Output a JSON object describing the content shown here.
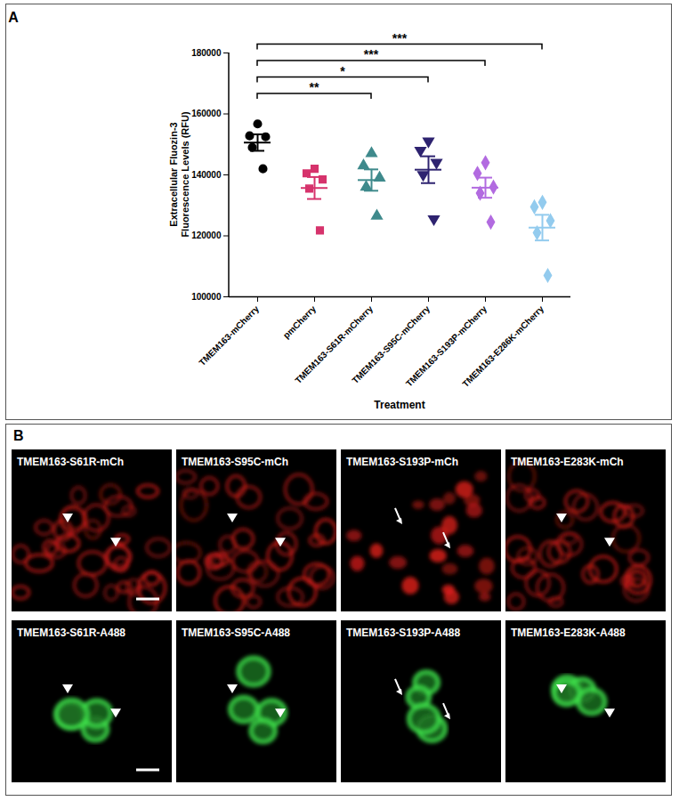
{
  "chart_data": {
    "type": "scatter",
    "panel_label": "A",
    "xlabel": "Treatment",
    "ylabel": "Extracellular Fluozin-3\nFluorescence Levels (RFU)",
    "categories": [
      "TMEM163-mCherry",
      "pmCherry",
      "TMEM163-S61R-mCherry",
      "TMEM163-S95C-mCherry",
      "TMEM163-S193P-mCherry",
      "TMEM163-E286K-mCherry"
    ],
    "points": [
      [
        156700,
        152800,
        152500,
        149000,
        142000
      ],
      [
        142000,
        140500,
        138500,
        135500,
        121800
      ],
      [
        147000,
        143000,
        139000,
        136000,
        126500
      ],
      [
        151000,
        148000,
        144000,
        140000,
        125500
      ],
      [
        144000,
        140500,
        136000,
        134000,
        124500
      ],
      [
        131000,
        129500,
        125000,
        121000,
        107000
      ]
    ],
    "mean": [
      150600,
      135700,
      138300,
      141700,
      135800,
      122700
    ],
    "sem": [
      2700,
      3600,
      3500,
      4400,
      3300,
      4200
    ],
    "colors": [
      "#000000",
      "#d6336c",
      "#3f8a8c",
      "#2e2370",
      "#b26be0",
      "#93cbee"
    ],
    "markers": [
      "circle",
      "square",
      "triangle",
      "triangle-down",
      "diamond",
      "diamond"
    ],
    "ylim": [
      100000,
      180000
    ],
    "yticks": [
      100000,
      120000,
      140000,
      160000,
      180000
    ],
    "grid": false,
    "significance": [
      {
        "from": "TMEM163-mCherry",
        "to": "TMEM163-S61R-mCherry",
        "label": "**"
      },
      {
        "from": "TMEM163-mCherry",
        "to": "TMEM163-S95C-mCherry",
        "label": "*"
      },
      {
        "from": "TMEM163-mCherry",
        "to": "TMEM163-S193P-mCherry",
        "label": "***"
      },
      {
        "from": "TMEM163-mCherry",
        "to": "TMEM163-E286K-mCherry",
        "label": "***"
      }
    ]
  },
  "image_panel": {
    "panel_label": "B",
    "rows": [
      [
        "TMEM163-S61R-mCh",
        "TMEM163-S95C-mCh",
        "TMEM163-S193P-mCh",
        "TMEM163-E283K-mCh"
      ],
      [
        "TMEM163-S61R-A488",
        "TMEM163-S95C-A488",
        "TMEM163-S193P-A488",
        "TMEM163-E283K-A488"
      ]
    ]
  }
}
